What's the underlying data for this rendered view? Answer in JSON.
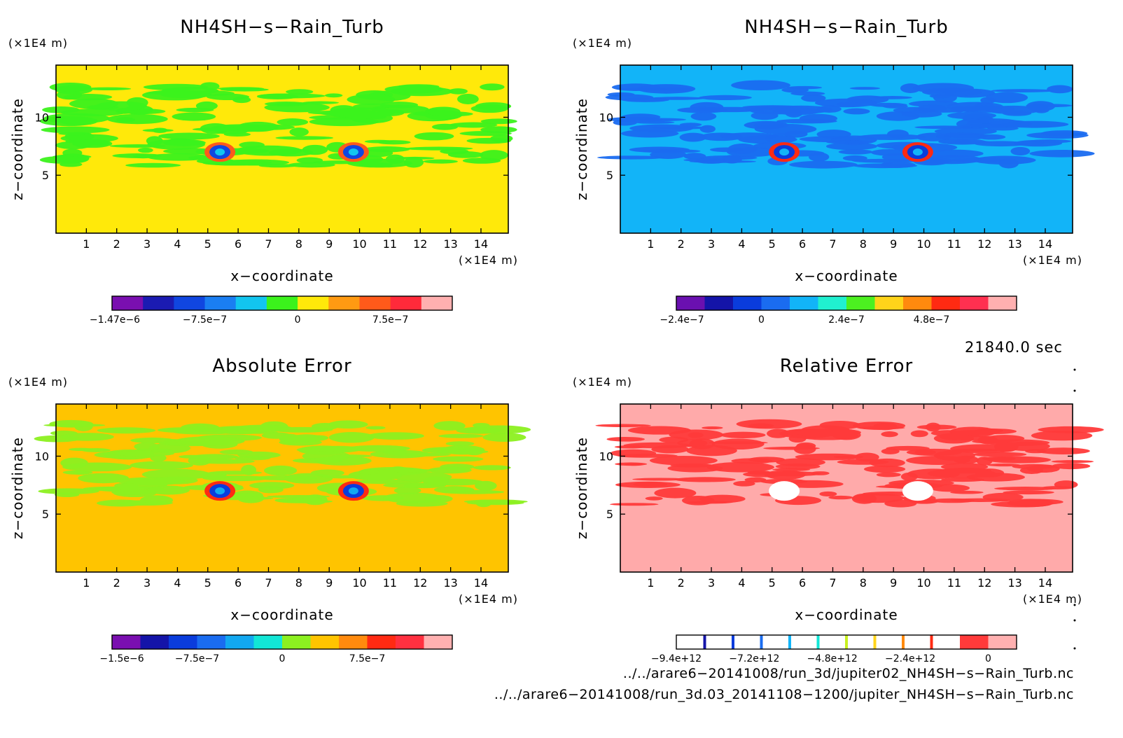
{
  "chart_data": [
    {
      "type": "heatmap",
      "title": "NH4SH−s−Rain_Turb",
      "xlabel": "x−coordinate",
      "ylabel": "z−coordinate",
      "x_unit": "(×1E4 m)",
      "y_unit": "(×1E4 m)",
      "x_ticks": [
        "1",
        "2",
        "3",
        "4",
        "5",
        "6",
        "7",
        "8",
        "9",
        "10",
        "11",
        "12",
        "13",
        "14"
      ],
      "y_ticks": [
        "5",
        "10"
      ],
      "colorbar": {
        "colors": [
          "#7a0fb0",
          "#1b1bb2",
          "#1046e0",
          "#1a7ef2",
          "#12c5ef",
          "#3bf21c",
          "#ffe90a",
          "#ff9a12",
          "#ff5a1a",
          "#ff2a3a",
          "#ffb0b0"
        ],
        "labels": [
          "−1.47e−6",
          "−7.5e−7",
          "0",
          "7.5e−7"
        ]
      },
      "background_color": "#ffe90a",
      "pattern_color": "#3bf21c"
    },
    {
      "type": "heatmap",
      "title": "NH4SH−s−Rain_Turb",
      "xlabel": "x−coordinate",
      "ylabel": "z−coordinate",
      "x_unit": "(×1E4 m)",
      "y_unit": "(×1E4 m)",
      "x_ticks": [
        "1",
        "2",
        "3",
        "4",
        "5",
        "6",
        "7",
        "8",
        "9",
        "10",
        "11",
        "12",
        "13",
        "14"
      ],
      "y_ticks": [
        "5",
        "10"
      ],
      "colorbar": {
        "colors": [
          "#6a10b0",
          "#1414a8",
          "#0a3cdc",
          "#1a6cf0",
          "#12b4f8",
          "#20f0d0",
          "#4cf020",
          "#ffd41a",
          "#ff8a0e",
          "#ff2a12",
          "#ff3050",
          "#ffb0b0"
        ],
        "labels": [
          "−2.4e−7",
          "0",
          "2.4e−7",
          "4.8e−7"
        ]
      },
      "background_color": "#12b4f8",
      "pattern_color": "#1a6cf0"
    },
    {
      "type": "heatmap",
      "title": "Absolute Error",
      "xlabel": "x−coordinate",
      "ylabel": "z−coordinate",
      "x_unit": "(×1E4 m)",
      "y_unit": "(×1E4 m)",
      "x_ticks": [
        "1",
        "2",
        "3",
        "4",
        "5",
        "6",
        "7",
        "8",
        "9",
        "10",
        "11",
        "12",
        "13",
        "14"
      ],
      "y_ticks": [
        "5",
        "10"
      ],
      "colorbar": {
        "colors": [
          "#7a0fb0",
          "#1414a8",
          "#0a3cdc",
          "#1a6cf0",
          "#12a8f0",
          "#12e6d6",
          "#8cf020",
          "#ffc400",
          "#ff8a0e",
          "#ff2a12",
          "#ff3040",
          "#ffb0b0"
        ],
        "labels": [
          "−1.5e−6",
          "−7.5e−7",
          "0",
          "7.5e−7"
        ]
      },
      "background_color": "#ffc400",
      "pattern_color": "#8cf020"
    },
    {
      "type": "heatmap",
      "title": "Relative Error",
      "xlabel": "x−coordinate",
      "ylabel": "z−coordinate",
      "x_unit": "(×1E4 m)",
      "y_unit": "(×1E4 m)",
      "x_ticks": [
        "1",
        "2",
        "3",
        "4",
        "5",
        "6",
        "7",
        "8",
        "9",
        "10",
        "11",
        "12",
        "13",
        "14"
      ],
      "y_ticks": [
        "5",
        "10"
      ],
      "colorbar": {
        "colors": [
          "#ffffff",
          "#ffffff",
          "#ffffff",
          "#ffffff",
          "#ffffff",
          "#ffffff",
          "#ffffff",
          "#ffffff",
          "#ffffff",
          "#ffffff",
          "#ff3a3a",
          "#ffb0b0"
        ],
        "labels": [
          "−9.4e+12",
          "−7.2e+12",
          "−4.8e+12",
          "−2.4e+12",
          "0"
        ]
      },
      "background_color": "#ffaaaa",
      "pattern_color": "#ff3a3a"
    }
  ],
  "time_label": "21840.0 sec",
  "file_paths": [
    "../../arare6−20141008/run_3d/jupiter02_NH4SH−s−Rain_Turb.nc",
    "../../arare6−20141008/run_3d.03_20141108−1200/jupiter_NH4SH−s−Rain_Turb.nc"
  ]
}
